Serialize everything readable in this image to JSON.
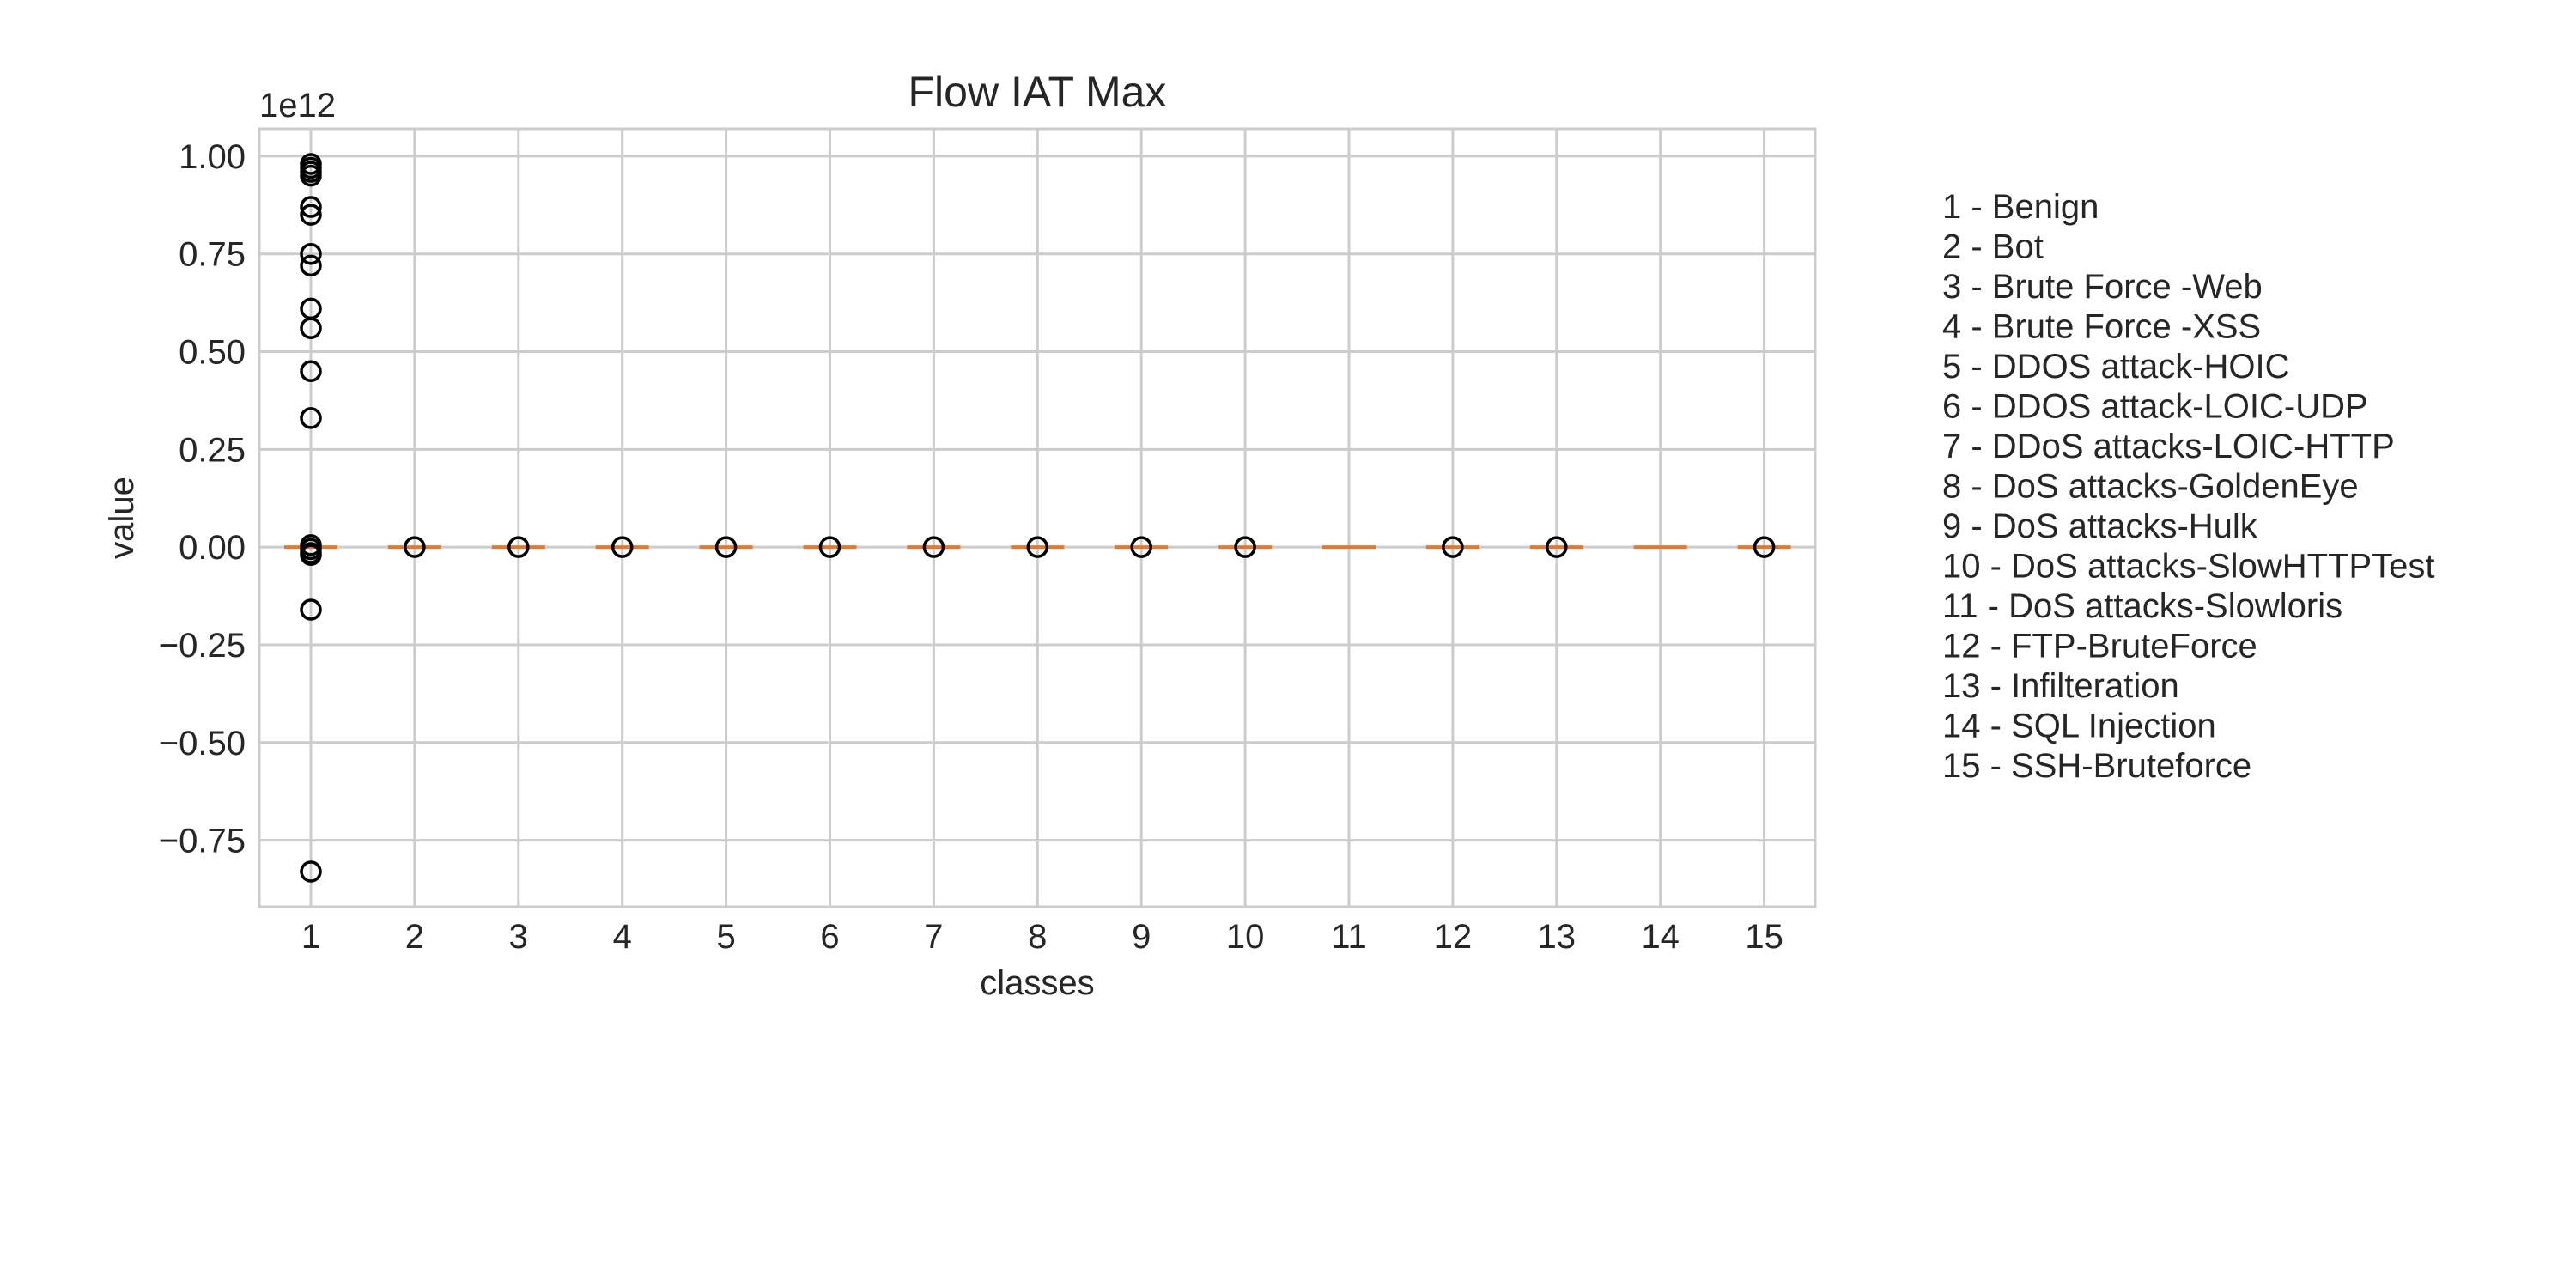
{
  "chart_data": {
    "type": "box",
    "title": "Flow IAT Max",
    "xlabel": "classes",
    "ylabel": "value",
    "y_offset_label": "1e12",
    "y_scale_factor": 1000000000000.0,
    "ylim": [
      -0.92,
      1.07
    ],
    "yticks": [
      -0.75,
      -0.5,
      -0.25,
      0.0,
      0.25,
      0.5,
      0.75,
      1.0
    ],
    "ytick_labels": [
      "−0.75",
      "−0.50",
      "−0.25",
      "0.00",
      "0.25",
      "0.50",
      "0.75",
      "1.00"
    ],
    "categories": [
      "1",
      "2",
      "3",
      "4",
      "5",
      "6",
      "7",
      "8",
      "9",
      "10",
      "11",
      "12",
      "13",
      "14",
      "15"
    ],
    "grid": true,
    "median_color": "#e8772e",
    "flier_color": "#000000",
    "boxes": [
      {
        "class": "1",
        "median": 0.0,
        "fliers": [
          0.98,
          0.97,
          0.96,
          0.95,
          0.87,
          0.85,
          0.75,
          0.72,
          0.61,
          0.56,
          0.45,
          0.33,
          0.005,
          -0.005,
          -0.015,
          -0.02,
          -0.16,
          -0.83
        ]
      },
      {
        "class": "2",
        "median": 0.0,
        "fliers": [
          0.0
        ]
      },
      {
        "class": "3",
        "median": 0.0,
        "fliers": [
          0.0
        ]
      },
      {
        "class": "4",
        "median": 0.0,
        "fliers": [
          0.0
        ]
      },
      {
        "class": "5",
        "median": 0.0,
        "fliers": [
          0.0
        ]
      },
      {
        "class": "6",
        "median": 0.0,
        "fliers": [
          0.0
        ]
      },
      {
        "class": "7",
        "median": 0.0,
        "fliers": [
          0.0
        ]
      },
      {
        "class": "8",
        "median": 0.0,
        "fliers": [
          0.0
        ]
      },
      {
        "class": "9",
        "median": 0.0,
        "fliers": [
          0.0
        ]
      },
      {
        "class": "10",
        "median": 0.0,
        "fliers": [
          0.0
        ]
      },
      {
        "class": "11",
        "median": 0.0,
        "fliers": []
      },
      {
        "class": "12",
        "median": 0.0,
        "fliers": [
          0.0
        ]
      },
      {
        "class": "13",
        "median": 0.0,
        "fliers": [
          0.0
        ]
      },
      {
        "class": "14",
        "median": 0.0,
        "fliers": []
      },
      {
        "class": "15",
        "median": 0.0,
        "fliers": [
          0.0
        ]
      }
    ],
    "legend_placement": "right",
    "legend": [
      "1 - Benign",
      "2 - Bot",
      "3 - Brute Force -Web",
      "4 - Brute Force -XSS",
      "5 - DDOS attack-HOIC",
      "6 - DDOS attack-LOIC-UDP",
      "7 - DDoS attacks-LOIC-HTTP",
      "8 - DoS attacks-GoldenEye",
      "9 - DoS attacks-Hulk",
      "10 - DoS attacks-SlowHTTPTest",
      "11 - DoS attacks-Slowloris",
      "12 - FTP-BruteForce",
      "13 - Infilteration",
      "14 - SQL Injection",
      "15 - SSH-Bruteforce"
    ]
  }
}
